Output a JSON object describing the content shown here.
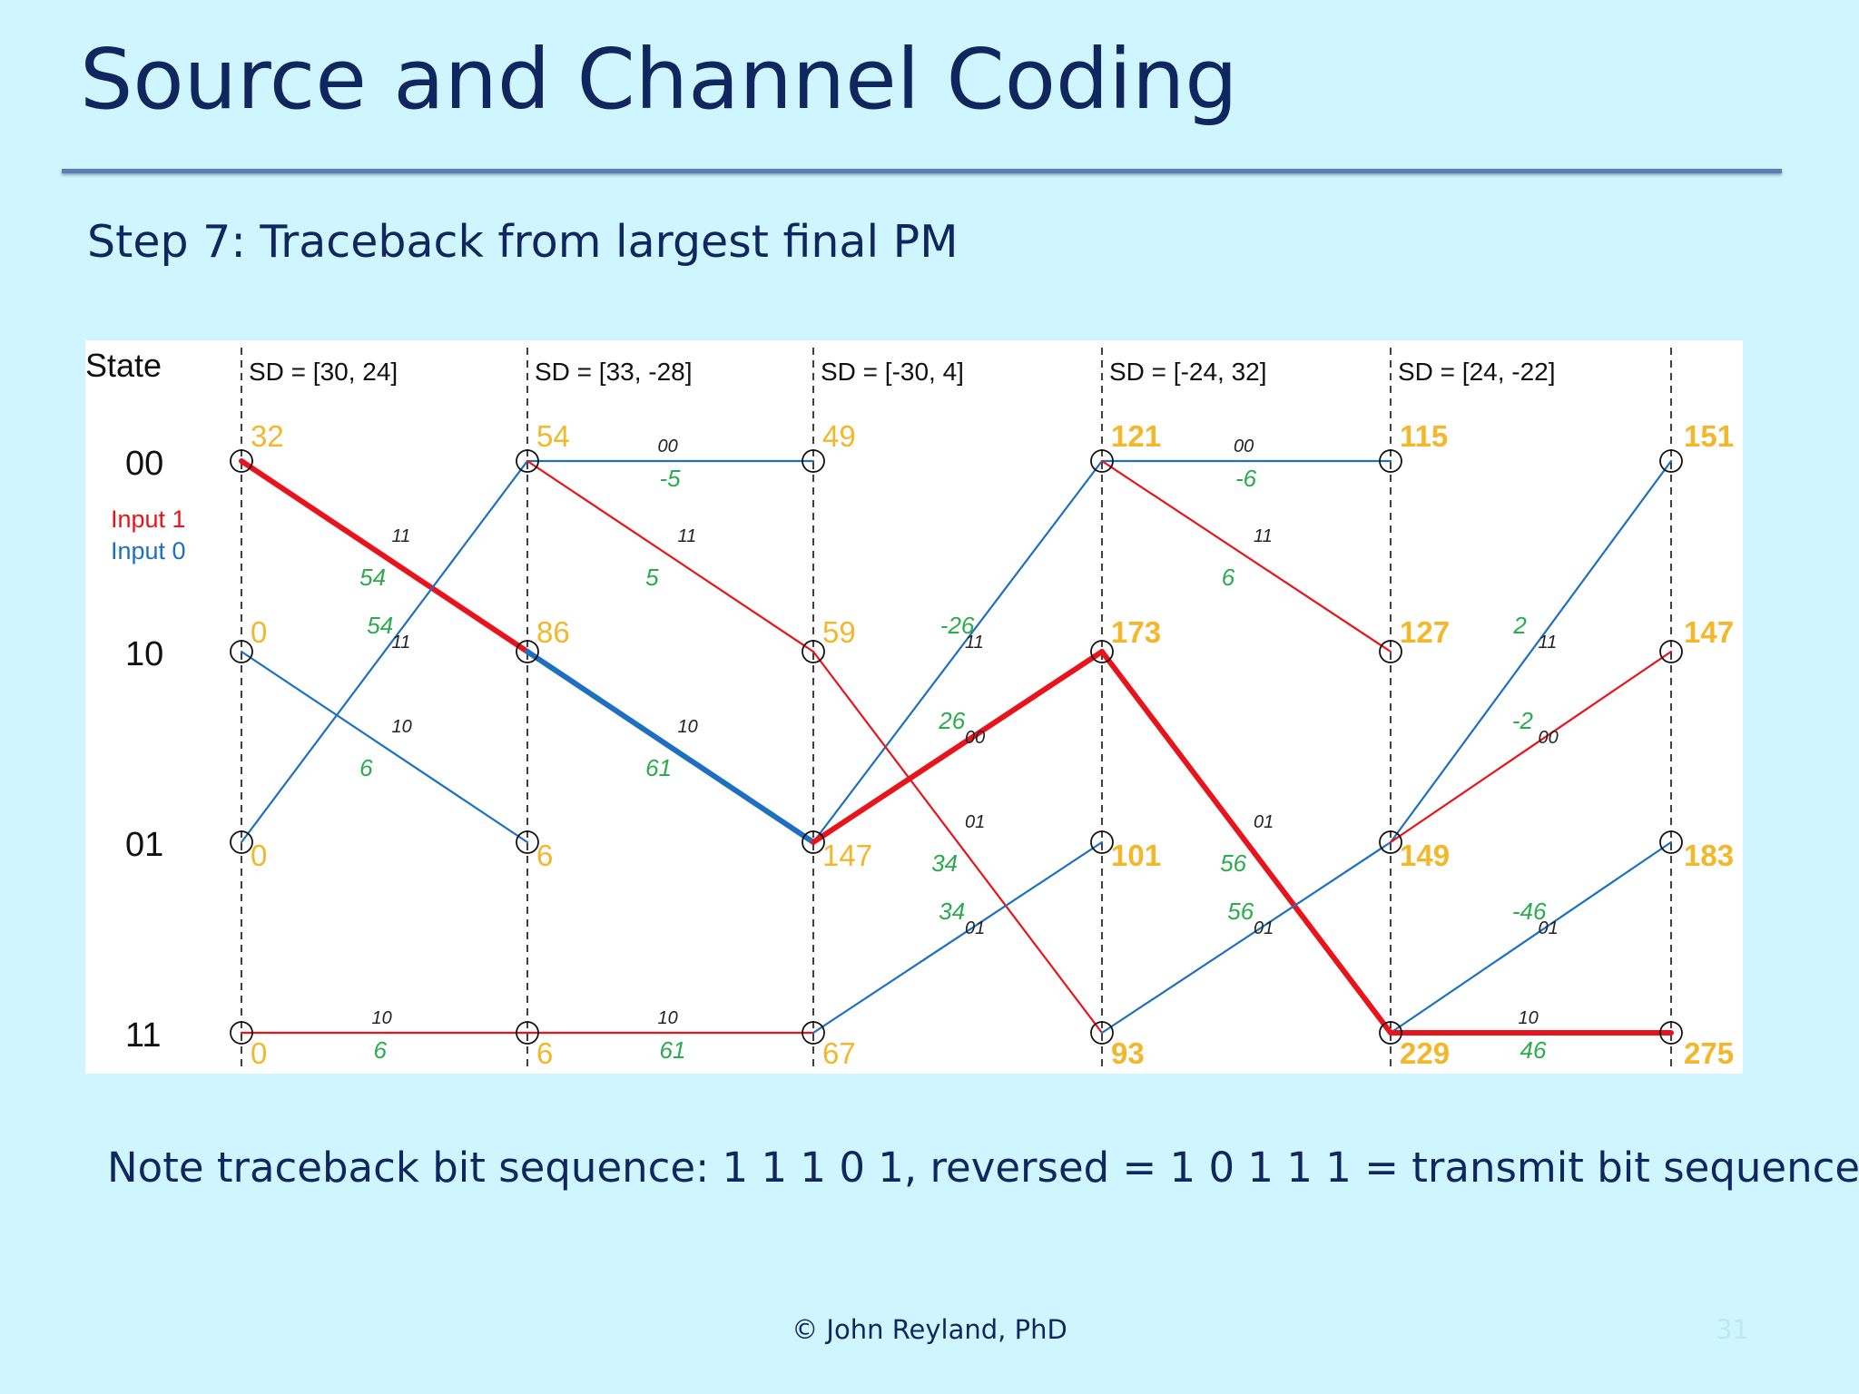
{
  "slide": {
    "title": "Source and Channel Coding",
    "subtitle": "Step 7: Traceback from largest final PM",
    "note": "Note traceback bit sequence: 1 1 1 0 1, reversed = 1 0 1 1 1 = transmit bit sequence",
    "footer": "© John Reyland, PhD",
    "slide_number": "31"
  },
  "trellis": {
    "state_header": "State",
    "states": [
      "00",
      "10",
      "01",
      "11"
    ],
    "legend": [
      {
        "label": "Input 1",
        "color": "#e8141c"
      },
      {
        "label": "Input 0",
        "color": "#1f6fbf"
      }
    ],
    "sd_labels": [
      "SD = [30, 24]",
      "SD = [33, -28]",
      "SD = [-30, 4]",
      "SD = [-24, 32]",
      "SD = [24, -22]"
    ],
    "path_metrics": [
      [
        "32",
        "0",
        "0",
        "0"
      ],
      [
        "54",
        "86",
        "6",
        "6"
      ],
      [
        "49",
        "59",
        "147",
        "67"
      ],
      [
        "121",
        "173",
        "101",
        "93"
      ],
      [
        "115",
        "127",
        "149",
        "229"
      ],
      [
        "151",
        "147",
        "183",
        "275"
      ]
    ],
    "branches": [
      {
        "step": 0,
        "from": 0,
        "to": 1,
        "input": 1,
        "code": "11",
        "metric": "54",
        "traceback": true
      },
      {
        "step": 0,
        "from": 1,
        "to": 2,
        "input": 0,
        "code": "10",
        "metric": "6",
        "traceback": false
      },
      {
        "step": 0,
        "from": 2,
        "to": 0,
        "input": 0,
        "code": "11",
        "metric": "54",
        "traceback": false
      },
      {
        "step": 0,
        "from": 3,
        "to": 3,
        "input": 1,
        "code": "10",
        "metric": "6",
        "traceback": false
      },
      {
        "step": 1,
        "from": 0,
        "to": 0,
        "input": 0,
        "code": "00",
        "metric": "-5",
        "traceback": false
      },
      {
        "step": 1,
        "from": 0,
        "to": 1,
        "input": 1,
        "code": "11",
        "metric": "5",
        "traceback": false
      },
      {
        "step": 1,
        "from": 1,
        "to": 2,
        "input": 0,
        "code": "10",
        "metric": "61",
        "traceback": true
      },
      {
        "step": 1,
        "from": 3,
        "to": 3,
        "input": 1,
        "code": "10",
        "metric": "61",
        "traceback": false
      },
      {
        "step": 2,
        "from": 2,
        "to": 0,
        "input": 0,
        "code": "11",
        "metric": "-26",
        "traceback": false
      },
      {
        "step": 2,
        "from": 2,
        "to": 1,
        "input": 1,
        "code": "00",
        "metric": "26",
        "traceback": true
      },
      {
        "step": 2,
        "from": 1,
        "to": 3,
        "input": 1,
        "code": "01",
        "metric": "34",
        "traceback": false
      },
      {
        "step": 2,
        "from": 3,
        "to": 2,
        "input": 0,
        "code": "01",
        "metric": "34",
        "traceback": false
      },
      {
        "step": 3,
        "from": 0,
        "to": 0,
        "input": 0,
        "code": "00",
        "metric": "-6",
        "traceback": false
      },
      {
        "step": 3,
        "from": 0,
        "to": 1,
        "input": 1,
        "code": "11",
        "metric": "6",
        "traceback": false
      },
      {
        "step": 3,
        "from": 1,
        "to": 3,
        "input": 1,
        "code": "01",
        "metric": "56",
        "traceback": true
      },
      {
        "step": 3,
        "from": 3,
        "to": 2,
        "input": 0,
        "code": "01",
        "metric": "56",
        "traceback": false
      },
      {
        "step": 4,
        "from": 2,
        "to": 0,
        "input": 0,
        "code": "11",
        "metric": "2",
        "traceback": false
      },
      {
        "step": 4,
        "from": 2,
        "to": 1,
        "input": 1,
        "code": "00",
        "metric": "-2",
        "traceback": false
      },
      {
        "step": 4,
        "from": 3,
        "to": 2,
        "input": 0,
        "code": "01",
        "metric": "-46",
        "traceback": false
      },
      {
        "step": 4,
        "from": 3,
        "to": 3,
        "input": 1,
        "code": "10",
        "metric": "46",
        "traceback": true
      }
    ],
    "colors": {
      "input1": "#e8141c",
      "input0": "#1f6fbf",
      "metric_text": "#2bab4e",
      "pm_text": "#f2b72a",
      "code_text": "#222222"
    }
  }
}
